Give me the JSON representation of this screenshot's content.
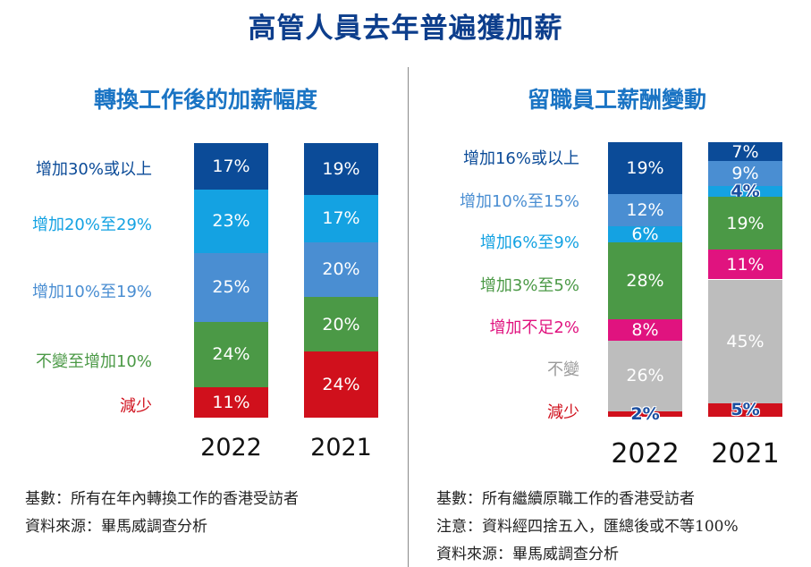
{
  "title": "高管人員去年普遍獲加薪",
  "chart_data": [
    {
      "type": "bar",
      "stacked": true,
      "title": "轉換工作後的加薪幅度",
      "categories": [
        "2022",
        "2021"
      ],
      "series": [
        {
          "name": "增加30%或以上",
          "color": "#0b4b98",
          "values": [
            17,
            19
          ]
        },
        {
          "name": "增加20%至29%",
          "color": "#14a2e2",
          "values": [
            23,
            17
          ]
        },
        {
          "name": "增加10%至19%",
          "color": "#4a8ed2",
          "values": [
            25,
            20
          ]
        },
        {
          "name": "不變至增加10%",
          "color": "#4b9946",
          "values": [
            24,
            20
          ]
        },
        {
          "name": "減少",
          "color": "#d0101c",
          "values": [
            11,
            24
          ]
        }
      ],
      "unit": "%",
      "notes": [
        "基數：所有在年內轉換工作的香港受訪者",
        "資料來源：畢馬威調查分析"
      ]
    },
    {
      "type": "bar",
      "stacked": true,
      "title": "留職員工薪酬變動",
      "categories": [
        "2022",
        "2021"
      ],
      "series": [
        {
          "name": "增加16%或以上",
          "color": "#0b4b98",
          "values": [
            19,
            7
          ]
        },
        {
          "name": "增加10%至15%",
          "color": "#4a8ed2",
          "values": [
            12,
            9
          ]
        },
        {
          "name": "增加6%至9%",
          "color": "#14a2e2",
          "values": [
            6,
            4
          ]
        },
        {
          "name": "增加3%至5%",
          "color": "#4b9946",
          "values": [
            28,
            19
          ]
        },
        {
          "name": "增加不足2%",
          "color": "#e0137f",
          "values": [
            8,
            11
          ]
        },
        {
          "name": "不變",
          "color": "#bdbdbd",
          "values": [
            26,
            45
          ]
        },
        {
          "name": "減少",
          "color": "#d0101c",
          "values": [
            2,
            5
          ]
        }
      ],
      "unit": "%",
      "notes": [
        "基數：所有繼續原職工作的香港受訪者",
        "注意：資料經四捨五入，匯總後或不等100%",
        "資料來源：畢馬威調查分析"
      ]
    }
  ]
}
